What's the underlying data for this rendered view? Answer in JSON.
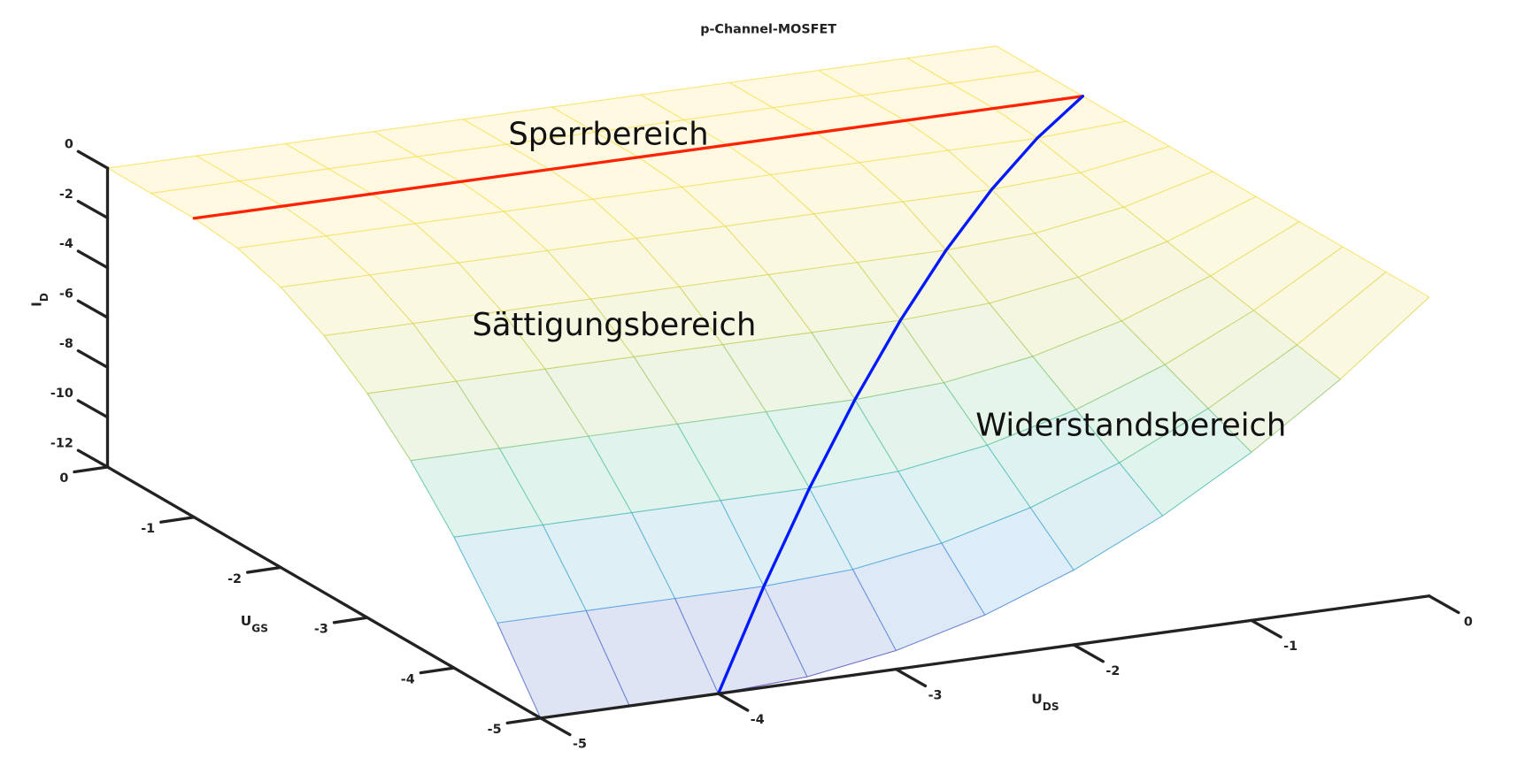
{
  "chart_data": {
    "type": "surface",
    "title": "p-Channel-MOSFET",
    "xlabel": {
      "text": "U",
      "sub": "DS"
    },
    "ylabel": {
      "text": "U",
      "sub": "GS"
    },
    "zlabel": {
      "text": "I",
      "sub": "D"
    },
    "x": [
      -5,
      -4.5,
      -4,
      -3.5,
      -3,
      -2.5,
      -2,
      -1.5,
      -1,
      -0.5,
      0
    ],
    "y": [
      -5,
      -4.5,
      -4,
      -3.5,
      -3,
      -2.5,
      -2,
      -1.5,
      -1,
      -0.5,
      0
    ],
    "z": [
      [
        -12,
        -12,
        -12,
        -11.8125,
        -11.25,
        -10.3125,
        -9,
        -7.3125,
        -5.25,
        -2.8125,
        0
      ],
      [
        -9.1875,
        -9.1875,
        -9.1875,
        -9.1875,
        -9,
        -8.4375,
        -7.5,
        -6.1875,
        -4.5,
        -2.4375,
        0
      ],
      [
        -6.75,
        -6.75,
        -6.75,
        -6.75,
        -6.75,
        -6.5625,
        -6,
        -5.0625,
        -3.75,
        -2.0625,
        0
      ],
      [
        -4.6875,
        -4.6875,
        -4.6875,
        -4.6875,
        -4.6875,
        -4.6875,
        -4.5,
        -3.9375,
        -3,
        -1.6875,
        0
      ],
      [
        -3,
        -3,
        -3,
        -3,
        -3,
        -3,
        -3,
        -2.8125,
        -2.25,
        -1.3125,
        0
      ],
      [
        -1.6875,
        -1.6875,
        -1.6875,
        -1.6875,
        -1.6875,
        -1.6875,
        -1.6875,
        -1.6875,
        -1.5,
        -0.9375,
        0
      ],
      [
        -0.75,
        -0.75,
        -0.75,
        -0.75,
        -0.75,
        -0.75,
        -0.75,
        -0.75,
        -0.75,
        -0.5625,
        0
      ],
      [
        -0.1875,
        -0.1875,
        -0.1875,
        -0.1875,
        -0.1875,
        -0.1875,
        -0.1875,
        -0.1875,
        -0.1875,
        -0.1875,
        0
      ],
      [
        0,
        0,
        0,
        0,
        0,
        0,
        0,
        0,
        0,
        0,
        0
      ],
      [
        0,
        0,
        0,
        0,
        0,
        0,
        0,
        0,
        0,
        0,
        0
      ],
      [
        0,
        0,
        0,
        0,
        0,
        0,
        0,
        0,
        0,
        0,
        0
      ]
    ],
    "xlim": [
      -5,
      0
    ],
    "ylim": [
      -5,
      0
    ],
    "zlim": [
      -12,
      0
    ],
    "xticks": [
      -5,
      -4,
      -3,
      -2,
      -1,
      0
    ],
    "yticks": [
      -5,
      -4,
      -3,
      -2,
      -1,
      0
    ],
    "zticks": [
      -12,
      -10,
      -8,
      -6,
      -4,
      -2,
      0
    ],
    "colormap": [
      "#3e26a8",
      "#2c8fe0",
      "#35b99a",
      "#b8c640",
      "#f9dc3c"
    ],
    "lines": [
      {
        "color": "#ff2200",
        "x": [
          -5,
          0
        ],
        "y": [
          -1,
          -1
        ],
        "z": [
          0,
          0
        ]
      },
      {
        "color": "#0018ff",
        "x": [
          -4,
          -3.5,
          -3,
          -2.5,
          -2,
          -1.5,
          -1,
          -0.5,
          0
        ],
        "y": [
          -5,
          -4.5,
          -4,
          -3.5,
          -3,
          -2.5,
          -2,
          -1.5,
          -1
        ],
        "z": [
          -12,
          -9.1875,
          -6.75,
          -4.6875,
          -3,
          -1.6875,
          -0.75,
          -0.1875,
          0
        ]
      }
    ],
    "annotations": [
      "Sperrbereich",
      "Sättigungsbereich",
      "Widerstandsbereich"
    ]
  }
}
